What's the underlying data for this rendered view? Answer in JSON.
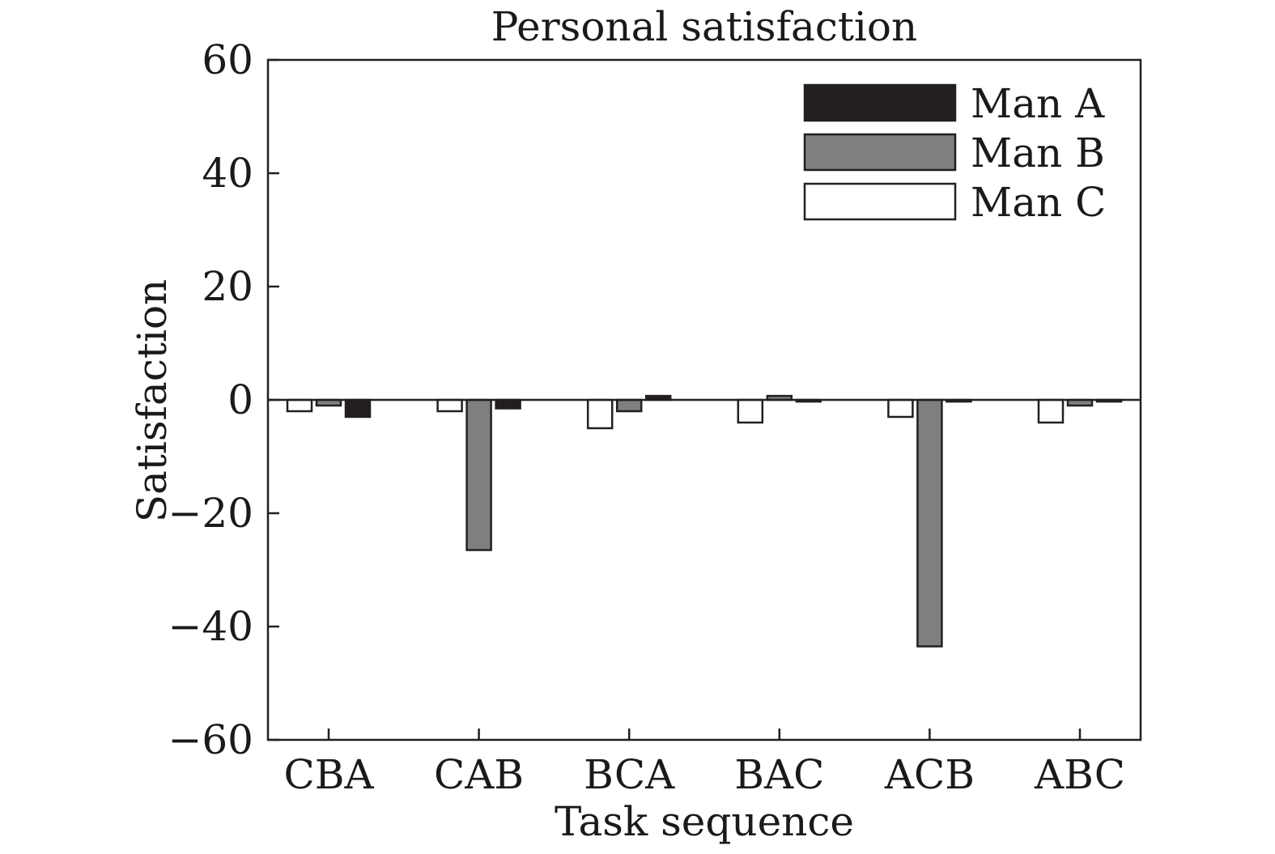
{
  "chart_data": {
    "type": "bar",
    "title": "Personal satisfaction",
    "xlabel": "Task sequence",
    "ylabel": "Satisfaction",
    "ylim": [
      -60,
      60
    ],
    "yticks": [
      60,
      40,
      20,
      0,
      -20,
      -40,
      -60
    ],
    "ytick_labels": [
      "60",
      "40",
      "20",
      "0",
      "−20",
      "−40",
      "−60"
    ],
    "categories": [
      "CBA",
      "CAB",
      "BCA",
      "BAC",
      "ACB",
      "ABC"
    ],
    "bar_order": [
      "Man C",
      "Man B",
      "Man A"
    ],
    "series": [
      {
        "name": "Man A",
        "color": "#231f20",
        "values": [
          -3,
          -1.5,
          0.7,
          -0.3,
          -0.3,
          -0.3
        ]
      },
      {
        "name": "Man B",
        "color": "#7f7f7f",
        "values": [
          -1,
          -26.5,
          -2,
          0.7,
          -43.5,
          -1
        ]
      },
      {
        "name": "Man C",
        "color": "#ffffff",
        "values": [
          -2,
          -2,
          -5,
          -4,
          -3,
          -4
        ]
      }
    ],
    "legend_position": "top-right",
    "grid": false
  }
}
